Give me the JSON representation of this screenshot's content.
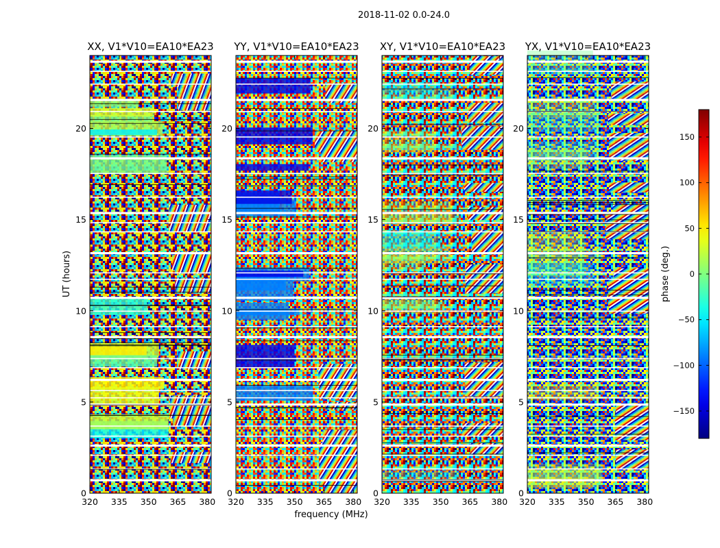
{
  "figure": {
    "suptitle": "2018-11-02 0.0-24.0"
  },
  "chart_data": {
    "type": "heatmap",
    "colormap": "jet",
    "x_range": [
      320,
      382
    ],
    "y_range": [
      0,
      24
    ],
    "x_ticks": [
      320,
      335,
      350,
      365,
      380
    ],
    "y_ticks": [
      0,
      5,
      10,
      15,
      20
    ],
    "xlabel": "frequency (MHz)",
    "ylabel": "UT (hours)",
    "panels": [
      {
        "title": "XX, V1*V10=EA10*EA23",
        "pol": "XX"
      },
      {
        "title": "YY, V1*V10=EA10*EA23",
        "pol": "YY"
      },
      {
        "title": "XY, V1*V10=EA10*EA23",
        "pol": "XY"
      },
      {
        "title": "YX, V1*V10=EA10*EA23",
        "pol": "YX"
      }
    ],
    "colorbar": {
      "label": "phase (deg.)",
      "range": [
        -180,
        180
      ],
      "ticks": [
        -150,
        -100,
        -50,
        0,
        50,
        100,
        150
      ]
    }
  }
}
